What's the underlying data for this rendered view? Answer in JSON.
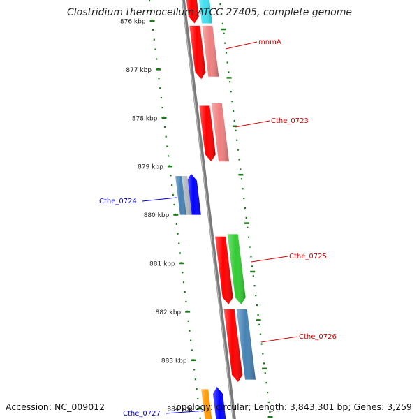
{
  "header": {
    "title": "Clostridium thermocellum ATCC 27405, complete genome"
  },
  "footer": {
    "accession": "Accession: NC_009012",
    "summary": "Topology: circular; Length: 3,843,301 bp; Genes: 3,259"
  },
  "colors": {
    "backbone": "#7a7a7a",
    "tick": "#1a7a1a",
    "forward_label": "#d40000",
    "reverse_label": "#0000cc",
    "red": "#ff0000",
    "pink": "#f08080",
    "green": "#33cc33",
    "steelblue": "#4682b4",
    "blue": "#0000ff",
    "gray": "#b0b8c0",
    "cyan": "#40e0f0",
    "orange": "#ff9900"
  },
  "ticks": [
    "876 kbp",
    "877 kbp",
    "878 kbp",
    "879 kbp",
    "880 kbp",
    "881 kbp",
    "882 kbp",
    "883 kbp",
    "884 kbp"
  ],
  "gene_labels": [
    {
      "text": "mnmA",
      "strand": "forward"
    },
    {
      "text": "Cthe_0723",
      "strand": "forward"
    },
    {
      "text": "Cthe_0724",
      "strand": "reverse"
    },
    {
      "text": "Cthe_0725",
      "strand": "forward"
    },
    {
      "text": "Cthe_0726",
      "strand": "forward"
    },
    {
      "text": "Cthe_0727",
      "strand": "reverse"
    }
  ],
  "features": [
    {
      "name": "gene-876-upper",
      "color": "red",
      "lane": "fwd-inner",
      "start_kbp": 875.4,
      "end_kbp": 876.05,
      "arrow": "down"
    },
    {
      "name": "cds-876-upper",
      "color": "cyan",
      "lane": "fwd-outer",
      "start_kbp": 875.4,
      "end_kbp": 876.05,
      "arrow": "none"
    },
    {
      "name": "gene-mnma",
      "color": "red",
      "lane": "fwd-inner",
      "start_kbp": 876.1,
      "end_kbp": 877.2,
      "arrow": "down"
    },
    {
      "name": "cds-mnma",
      "color": "pink",
      "lane": "fwd-outer",
      "start_kbp": 876.1,
      "end_kbp": 877.15,
      "arrow": "none"
    },
    {
      "name": "gene-cthe-0723",
      "color": "red",
      "lane": "fwd-inner",
      "start_kbp": 877.75,
      "end_kbp": 878.9,
      "arrow": "down"
    },
    {
      "name": "cds-cthe-0723",
      "color": "pink",
      "lane": "fwd-outer",
      "start_kbp": 877.7,
      "end_kbp": 878.9,
      "arrow": "none"
    },
    {
      "name": "gene-cthe-0724",
      "color": "blue",
      "lane": "rev-inner",
      "start_kbp": 879.15,
      "end_kbp": 880.0,
      "arrow": "up"
    },
    {
      "name": "cds-cthe-0724",
      "color": "steelblue",
      "lane": "rev-outer",
      "start_kbp": 879.2,
      "end_kbp": 880.0,
      "arrow": "none"
    },
    {
      "name": "cds-cthe-0724-b",
      "color": "gray",
      "lane": "rev-mid",
      "start_kbp": 879.2,
      "end_kbp": 880.0,
      "arrow": "none"
    },
    {
      "name": "gene-cthe-0725",
      "color": "red",
      "lane": "fwd-inner",
      "start_kbp": 880.45,
      "end_kbp": 881.85,
      "arrow": "down"
    },
    {
      "name": "cds-cthe-0725",
      "color": "green",
      "lane": "fwd-outer",
      "start_kbp": 880.4,
      "end_kbp": 881.85,
      "arrow": "down"
    },
    {
      "name": "gene-cthe-0726",
      "color": "red",
      "lane": "fwd-inner",
      "start_kbp": 881.95,
      "end_kbp": 883.45,
      "arrow": "down"
    },
    {
      "name": "cds-cthe-0726",
      "color": "steelblue",
      "lane": "fwd-outer",
      "start_kbp": 881.95,
      "end_kbp": 883.4,
      "arrow": "none"
    },
    {
      "name": "gene-cthe-0727",
      "color": "blue",
      "lane": "rev-inner",
      "start_kbp": 883.55,
      "end_kbp": 884.6,
      "arrow": "up"
    },
    {
      "name": "cds-cthe-0727",
      "color": "orange",
      "lane": "rev-outer",
      "start_kbp": 883.6,
      "end_kbp": 884.6,
      "arrow": "none"
    }
  ]
}
